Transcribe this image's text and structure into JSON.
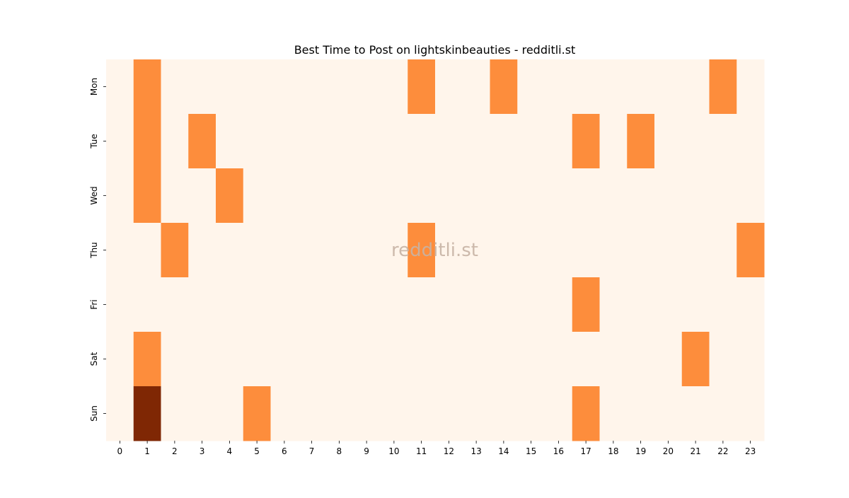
{
  "chart_data": {
    "type": "heatmap",
    "title": "Best Time to Post on lightskinbeauties - redditli.st",
    "watermark": "redditli.st",
    "xlabel": "",
    "ylabel": "",
    "x_categories": [
      "0",
      "1",
      "2",
      "3",
      "4",
      "5",
      "6",
      "7",
      "8",
      "9",
      "10",
      "11",
      "12",
      "13",
      "14",
      "15",
      "16",
      "17",
      "18",
      "19",
      "20",
      "21",
      "22",
      "23"
    ],
    "y_categories": [
      "Mon",
      "Tue",
      "Wed",
      "Thu",
      "Fri",
      "Sat",
      "Sun"
    ],
    "values": [
      [
        0,
        1,
        0,
        0,
        0,
        0,
        0,
        0,
        0,
        0,
        0,
        1,
        0,
        0,
        1,
        0,
        0,
        0,
        0,
        0,
        0,
        0,
        1,
        0
      ],
      [
        0,
        1,
        0,
        1,
        0,
        0,
        0,
        0,
        0,
        0,
        0,
        0,
        0,
        0,
        0,
        0,
        0,
        1,
        0,
        1,
        0,
        0,
        0,
        0
      ],
      [
        0,
        1,
        0,
        0,
        1,
        0,
        0,
        0,
        0,
        0,
        0,
        0,
        0,
        0,
        0,
        0,
        0,
        0,
        0,
        0,
        0,
        0,
        0,
        0
      ],
      [
        0,
        0,
        1,
        0,
        0,
        0,
        0,
        0,
        0,
        0,
        0,
        1,
        0,
        0,
        0,
        0,
        0,
        0,
        0,
        0,
        0,
        0,
        0,
        1
      ],
      [
        0,
        0,
        0,
        0,
        0,
        0,
        0,
        0,
        0,
        0,
        0,
        0,
        0,
        0,
        0,
        0,
        0,
        1,
        0,
        0,
        0,
        0,
        0,
        0
      ],
      [
        0,
        1,
        0,
        0,
        0,
        0,
        0,
        0,
        0,
        0,
        0,
        0,
        0,
        0,
        0,
        0,
        0,
        0,
        0,
        0,
        0,
        1,
        0,
        0
      ],
      [
        0,
        3,
        0,
        0,
        0,
        1,
        0,
        0,
        0,
        0,
        0,
        0,
        0,
        0,
        0,
        0,
        0,
        1,
        0,
        0,
        0,
        0,
        0,
        0
      ]
    ],
    "colormap": "Oranges",
    "color_scale": {
      "0": "#fff5eb",
      "1": "#fd8d3c",
      "3": "#7f2704"
    },
    "grid": false,
    "legend": "none"
  }
}
